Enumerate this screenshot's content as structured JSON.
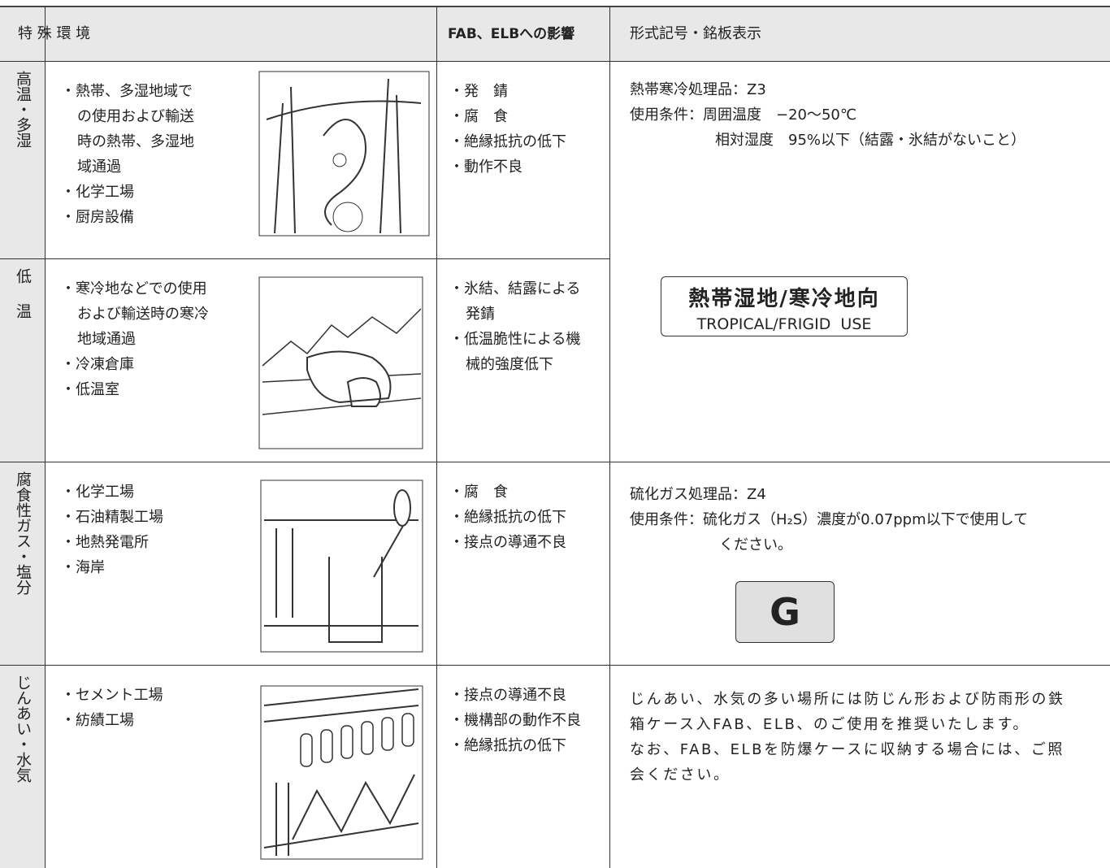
{
  "header": [
    "特 殊 環 境",
    "FAB、ELBへの影響",
    "形式記号・銘板表示"
  ],
  "rows": [
    {
      "environment": "高温・多湿",
      "conditions": [
        [
          "・熱帯、多湿地域で",
          "の使用および輸送",
          "時の熱帯、多湿地",
          "域通過"
        ],
        [
          "・化学工場"
        ],
        [
          "・厨房設備"
        ]
      ],
      "effects": [
        [
          "・発　錆"
        ],
        [
          "・腐　食"
        ],
        [
          "・絶縁抵抗の低下"
        ],
        [
          "・動作不良"
        ]
      ]
    },
    {
      "environment": "低温",
      "conditions": [
        [
          "・寒冷地などでの使用",
          "および輸送時の寒冷",
          "地域通過"
        ],
        [
          "・冷凍倉庫"
        ],
        [
          "・低温室"
        ]
      ],
      "effects": [
        [
          "・氷結、結露による",
          "発錆"
        ],
        [
          "・低温脆性による機",
          "械的強度低下"
        ]
      ]
    },
    {
      "environment": "腐食性ガス・塩分",
      "conditions": [
        [
          "・化学工場"
        ],
        [
          "・石油精製工場"
        ],
        [
          "・地熱発電所"
        ],
        [
          "・海岸"
        ]
      ],
      "effects": [
        [
          "・腐　食"
        ],
        [
          "・絶縁抵抗の低下"
        ],
        [
          "・接点の導通不良"
        ]
      ]
    },
    {
      "environment": "じんあい・水気",
      "conditions": [
        [
          "・セメント工場"
        ],
        [
          "・紡績工場"
        ]
      ],
      "effects": [
        [
          "・接点の導通不良"
        ],
        [
          "・機構部の動作不良"
        ],
        [
          "・絶縁抵抗の低下"
        ]
      ]
    }
  ],
  "formats": [
    {
      "lines": [
        "熱帯寒冷処理品：Z3",
        "使用条件：周囲温度　−20〜50℃"
      ],
      "indented": [
        "相対湿度　95%以下（結露・氷結がないこと）"
      ],
      "badge": [
        "熱帯湿地/寒冷地向",
        "TROPICAL/FRIGID  USE"
      ]
    },
    {
      "lines": [
        "硫化ガス処理品：Z4",
        "使用条件：硫化ガス（H₂S）濃度が0.07ppm以下で使用して"
      ],
      "indented": [
        "ください。"
      ],
      "badge": [
        "G"
      ]
    },
    {
      "lines": [
        "じんあい、水気の多い場所には防じん形および防雨形の鉄",
        "箱ケース入FAB、ELB、のご使用を推奨いたします。",
        "なお、FAB、ELBを防爆ケースに収納する場合には、ご照",
        "会ください。"
      ]
    }
  ]
}
